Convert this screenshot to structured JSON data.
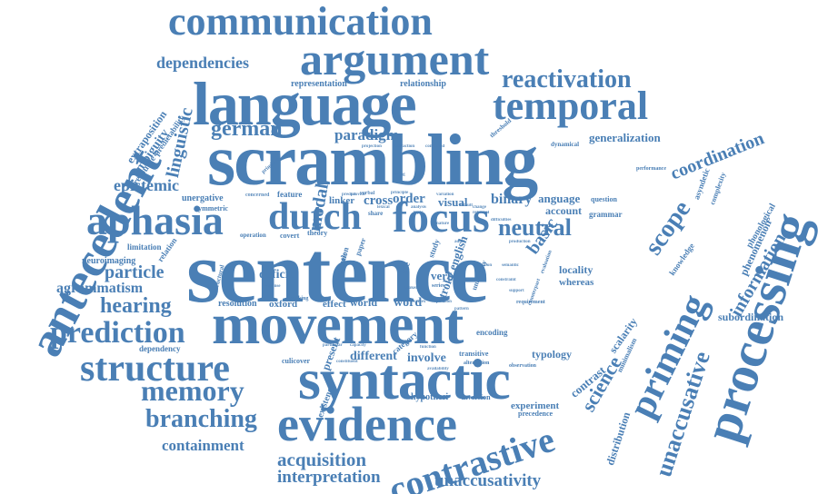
{
  "colors": {
    "word": "#4a7fb5",
    "background": "#ffffff"
  },
  "words": {
    "sentence": "sentence",
    "scrambling": "scrambling",
    "movement": "movement",
    "syntactic": "syntactic",
    "language": "language",
    "processing": "processing",
    "communication": "communication",
    "argument": "argument",
    "antecedent": "antecedent",
    "aphasia": "aphasia",
    "evidence": "evidence",
    "dutch": "dutch",
    "focus": "focus",
    "temporal": "temporal",
    "reactivation": "reactivation",
    "structure": "structure",
    "contrastive": "contrastive",
    "priming": "priming",
    "unaccusative": "unaccusative",
    "memory": "memory",
    "prediction": "prediction",
    "hearing": "hearing",
    "branching": "branching",
    "dependencies": "dependencies",
    "german": "german",
    "coordination": "coordination",
    "scope": "scope",
    "information": "information",
    "neutral": "neutral",
    "particle": "particle",
    "agrammatism": "agrammatism",
    "epistemic": "epistemic",
    "linguistic": "linguistic",
    "ambiguity": "ambiguity",
    "extraposition": "extraposition",
    "resource": "resource",
    "predictability": "predictability",
    "representation": "representation",
    "relationship": "relationship",
    "paradigm": "paradigm",
    "generalization": "generalization",
    "containment": "containment",
    "acquisition": "acquisition",
    "interpretation": "interpretation",
    "unaccusativity": "unaccusativity",
    "science": "science",
    "contrast": "contrast",
    "typology": "typology",
    "different": "different",
    "involve": "involve",
    "experiment": "experiment",
    "precedence": "precedence",
    "hypothesi": "hypothesi",
    "inversion": "inversion",
    "distribution": "distribution",
    "scalarity": "scalarity",
    "locality": "locality",
    "whereas": "whereas",
    "phenomenon": "phenomenon",
    "phonological": "phonological",
    "subordination": "subordination",
    "knowledge": "knowledge",
    "basic": "basic",
    "binary": "binary",
    "anguage": "anguage",
    "question": "question",
    "grammar": "grammar",
    "account": "account",
    "modal": "modal",
    "deficit": "deficit",
    "resolution": "resolution",
    "oxford": "oxford",
    "effect": "effect",
    "world": "world",
    "word": "word",
    "verb": "verb",
    "visual": "visual",
    "order": "order",
    "cross": "cross",
    "linker": "linker",
    "feature": "feature",
    "foundation": "foundation",
    "unergative": "unergative",
    "symmetric": "symmetric",
    "relation": "relation",
    "limitation": "limitation",
    "neuroimaging": "neuroimaging",
    "dependency": "dependency",
    "culicover": "culicover",
    "existence": "existence",
    "present": "present",
    "encoding": "encoding",
    "transitive": "transitive",
    "alternation": "alternation",
    "observation": "observation",
    "asyndetic": "asyndetic",
    "complexity": "complexity",
    "minimalism": "minimalism",
    "performance": "performance",
    "dynamical": "dynamical",
    "threshold": "threshold",
    "operation": "operation",
    "covert": "covert",
    "theory": "theory",
    "share": "share",
    "stroke english": "stroke english",
    "category": "category",
    "university": "university",
    "structural": "structural",
    "working": "working",
    "cortex": "cortex",
    "series": "series",
    "position": "position",
    "pattern": "pattern",
    "requirement": "requirement",
    "support": "support",
    "counterpart": "counterpart",
    "response": "response",
    "primitive": "primitive",
    "concerned": "concerned",
    "projection": "projection",
    "abstraction": "abstraction",
    "command": "command",
    "verbal": "verbal",
    "provide": "provide",
    "predict": "predict",
    "paper": "paper",
    "variation": "variation",
    "change": "change",
    "difficulties": "difficulties",
    "capacity": "capacity",
    "particular": "particular",
    "constituent": "constituent",
    "function": "function",
    "availability": "availability",
    "study": "study",
    "nature": "nature",
    "topic": "topic",
    "spoken": "spoken",
    "evaluation": "evaluation",
    "life": "life",
    "analysis": "analysis",
    "principle": "principle",
    "lexical": "lexical",
    "default": "default",
    "retrieval": "retrieval",
    "adult": "adult",
    "failing": "failing",
    "result": "result",
    "production": "production",
    "semantic": "semantic",
    "elicitation": "elicitation",
    "constraint": "constraint"
  }
}
